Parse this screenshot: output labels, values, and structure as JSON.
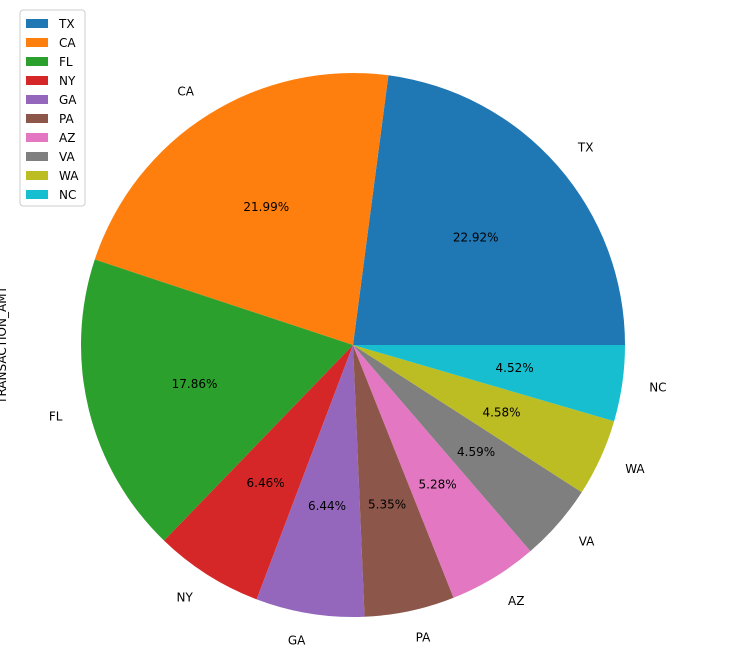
{
  "chart_data": {
    "type": "pie",
    "title": "",
    "ylabel": "TRANSACTION_AMT",
    "slices": [
      {
        "label": "TX",
        "value": 22.92,
        "pct_label": "22.92%",
        "color": "#1f77b4"
      },
      {
        "label": "CA",
        "value": 21.99,
        "pct_label": "21.99%",
        "color": "#ff7f0e"
      },
      {
        "label": "FL",
        "value": 17.86,
        "pct_label": "17.86%",
        "color": "#2ca02c"
      },
      {
        "label": "NY",
        "value": 6.46,
        "pct_label": "6.46%",
        "color": "#d62728"
      },
      {
        "label": "GA",
        "value": 6.44,
        "pct_label": "6.44%",
        "color": "#9467bd"
      },
      {
        "label": "PA",
        "value": 5.35,
        "pct_label": "5.35%",
        "color": "#8c564b"
      },
      {
        "label": "AZ",
        "value": 5.28,
        "pct_label": "5.28%",
        "color": "#e377c2"
      },
      {
        "label": "VA",
        "value": 4.59,
        "pct_label": "4.59%",
        "color": "#7f7f7f"
      },
      {
        "label": "WA",
        "value": 4.58,
        "pct_label": "4.58%",
        "color": "#bcbd22"
      },
      {
        "label": "NC",
        "value": 4.52,
        "pct_label": "4.52%",
        "color": "#17becf"
      }
    ],
    "legend_placement": "top-left",
    "start_angle": "3 o'clock",
    "direction": "counterclockwise"
  }
}
